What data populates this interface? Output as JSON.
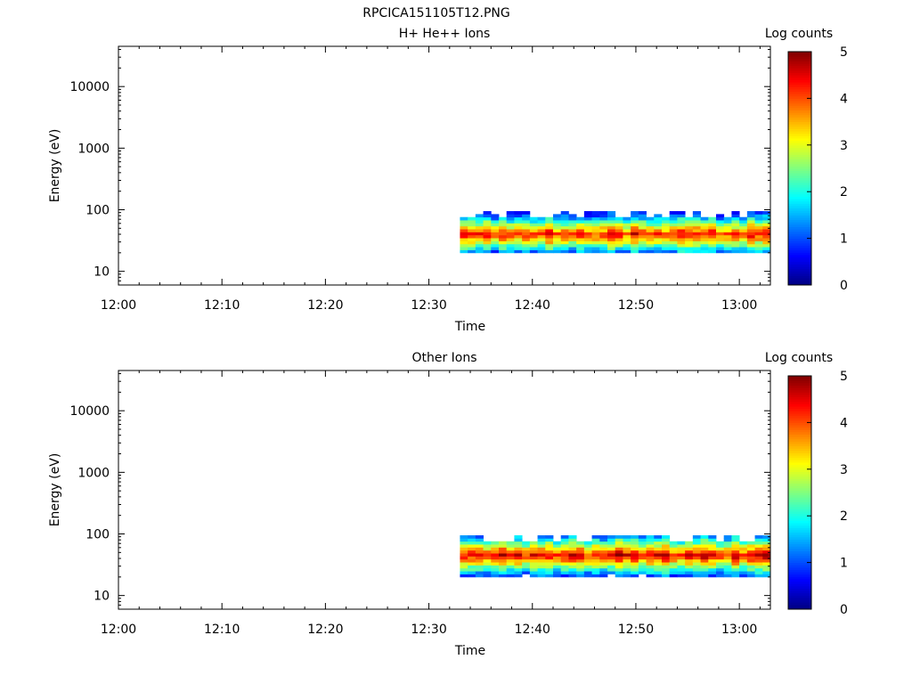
{
  "figure_title": "RPCICA151105T12.PNG",
  "chart_data": [
    {
      "type": "heatmap",
      "title": "H+ He++ Ions",
      "xlabel": "Time",
      "ylabel": "Energy (eV)",
      "x_axis": {
        "range": [
          "12:00",
          "13:03"
        ],
        "ticks": [
          "12:00",
          "12:10",
          "12:20",
          "12:30",
          "12:40",
          "12:50",
          "13:00"
        ]
      },
      "y_axis": {
        "scale": "log",
        "range": [
          6,
          45000
        ],
        "ticks": [
          10,
          100,
          1000,
          10000
        ],
        "tick_labels": [
          "10",
          "100",
          "1000",
          "10000"
        ]
      },
      "colorbar": {
        "label": "Log counts",
        "range": [
          0,
          5
        ],
        "ticks": [
          0,
          1,
          2,
          3,
          4,
          5
        ],
        "tick_labels": [
          "0",
          "1",
          "2",
          "3",
          "4",
          "5"
        ],
        "colormap": "jet"
      },
      "data_time_range": [
        "12:33",
        "13:03"
      ],
      "energy_band_eV": [
        20,
        95
      ],
      "peak_energy_eV": 40,
      "peak_log_counts": 4.3
    },
    {
      "type": "heatmap",
      "title": "Other Ions",
      "xlabel": "Time",
      "ylabel": "Energy (eV)",
      "x_axis": {
        "range": [
          "12:00",
          "13:03"
        ],
        "ticks": [
          "12:00",
          "12:10",
          "12:20",
          "12:30",
          "12:40",
          "12:50",
          "13:00"
        ]
      },
      "y_axis": {
        "scale": "log",
        "range": [
          6,
          45000
        ],
        "ticks": [
          10,
          100,
          1000,
          10000
        ],
        "tick_labels": [
          "10",
          "100",
          "1000",
          "10000"
        ]
      },
      "colorbar": {
        "label": "Log counts",
        "range": [
          0,
          5
        ],
        "ticks": [
          0,
          1,
          2,
          3,
          4,
          5
        ],
        "tick_labels": [
          "0",
          "1",
          "2",
          "3",
          "4",
          "5"
        ],
        "colormap": "jet"
      },
      "data_time_range": [
        "12:33",
        "13:03"
      ],
      "energy_band_eV": [
        20,
        95
      ],
      "peak_energy_eV": 45,
      "peak_log_counts": 4.5
    }
  ]
}
